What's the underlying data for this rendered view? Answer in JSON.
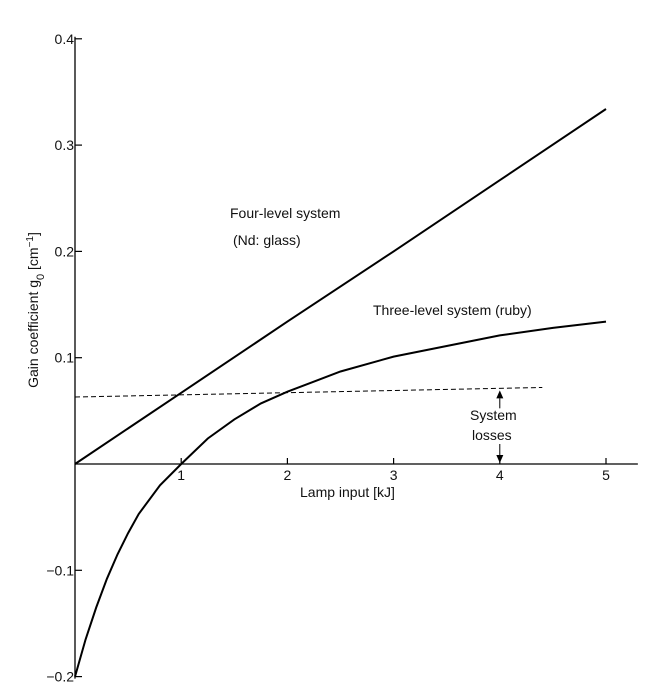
{
  "chart_data": {
    "type": "line",
    "xlabel": "Lamp input [kJ]",
    "ylabel_main": "Gain coefficient g",
    "ylabel_sub": "0",
    "ylabel_unit_pre": " [cm",
    "ylabel_unit_sup": "−1",
    "ylabel_unit_post": "]",
    "xlim": [
      0,
      5.3
    ],
    "ylim": [
      -0.2,
      0.4
    ],
    "x_ticks": [
      1,
      2,
      3,
      4,
      5
    ],
    "y_ticks": [
      {
        "value": 0.4,
        "label": "0.4"
      },
      {
        "value": 0.3,
        "label": "0.3"
      },
      {
        "value": 0.2,
        "label": "0.2"
      },
      {
        "value": 0.1,
        "label": "0.1"
      },
      {
        "value": -0.1,
        "label": "−0.1"
      },
      {
        "value": -0.2,
        "label": "−0.2"
      }
    ],
    "series": [
      {
        "name": "four-level",
        "label_line1": "Four-level system",
        "label_line2": "(Nd: glass)",
        "x": [
          0,
          1,
          2,
          3,
          4,
          5
        ],
        "y": [
          0.0,
          0.067,
          0.134,
          0.2,
          0.267,
          0.334
        ]
      },
      {
        "name": "three-level",
        "label_line1": "Three-level system (ruby)",
        "x": [
          0,
          0.1,
          0.2,
          0.3,
          0.4,
          0.5,
          0.6,
          0.8,
          1.0,
          1.25,
          1.5,
          1.75,
          2.0,
          2.5,
          3.0,
          3.5,
          4.0,
          4.5,
          5.0
        ],
        "y": [
          -0.2,
          -0.165,
          -0.135,
          -0.108,
          -0.085,
          -0.065,
          -0.047,
          -0.02,
          0.0,
          0.024,
          0.042,
          0.057,
          0.068,
          0.087,
          0.101,
          0.111,
          0.121,
          0.128,
          0.134
        ]
      }
    ],
    "losses": {
      "label_line1": "System",
      "label_line2": "losses",
      "x": [
        0,
        4.4
      ],
      "y": [
        0.063,
        0.072
      ],
      "arrow_x": 4.0
    }
  }
}
